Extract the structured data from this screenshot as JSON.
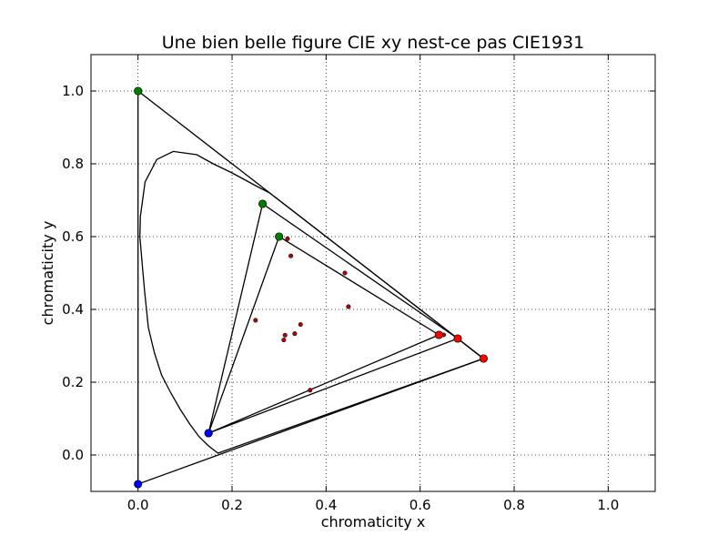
{
  "chart_data": {
    "type": "scatter",
    "title": "Une bien belle figure CIE xy nest-ce pas CIE1931",
    "xlabel": "chromaticity x",
    "ylabel": "chromaticity y",
    "xlim": [
      -0.1,
      1.1
    ],
    "ylim": [
      -0.1,
      1.1
    ],
    "xticks": [
      0.0,
      0.2,
      0.4,
      0.6,
      0.8,
      1.0
    ],
    "xtick_labels": [
      "0.0",
      "0.2",
      "0.4",
      "0.6",
      "0.8",
      "1.0"
    ],
    "yticks": [
      0.0,
      0.2,
      0.4,
      0.6,
      0.8,
      1.0
    ],
    "ytick_labels": [
      "0.0",
      "0.2",
      "0.4",
      "0.6",
      "0.8",
      "1.0"
    ],
    "grid": true,
    "locus": {
      "color": "#000000",
      "points": [
        [
          0.735,
          0.265
        ],
        [
          0.72,
          0.279
        ],
        [
          0.68,
          0.32
        ],
        [
          0.64,
          0.36
        ],
        [
          0.6,
          0.4
        ],
        [
          0.56,
          0.44
        ],
        [
          0.52,
          0.48
        ],
        [
          0.48,
          0.52
        ],
        [
          0.44,
          0.56
        ],
        [
          0.4,
          0.6
        ],
        [
          0.36,
          0.64
        ],
        [
          0.32,
          0.68
        ],
        [
          0.28,
          0.72
        ],
        [
          0.25,
          0.74
        ],
        [
          0.2,
          0.775
        ],
        [
          0.16,
          0.8
        ],
        [
          0.125,
          0.825
        ],
        [
          0.075,
          0.834
        ],
        [
          0.04,
          0.812
        ],
        [
          0.015,
          0.75
        ],
        [
          0.005,
          0.655
        ],
        [
          0.004,
          0.6
        ],
        [
          0.008,
          0.538
        ],
        [
          0.014,
          0.45
        ],
        [
          0.022,
          0.35
        ],
        [
          0.035,
          0.28
        ],
        [
          0.05,
          0.22
        ],
        [
          0.07,
          0.17
        ],
        [
          0.09,
          0.125
        ],
        [
          0.11,
          0.085
        ],
        [
          0.13,
          0.05
        ],
        [
          0.15,
          0.025
        ],
        [
          0.17,
          0.005
        ],
        [
          0.735,
          0.265
        ]
      ]
    },
    "gamuts": [
      {
        "red": [
          0.735,
          0.265
        ],
        "green": [
          0.0,
          1.0
        ],
        "blue": [
          0.0,
          -0.08
        ]
      },
      {
        "red": [
          0.68,
          0.32
        ],
        "green": [
          0.265,
          0.69
        ],
        "blue": [
          0.15,
          0.06
        ]
      },
      {
        "red": [
          0.64,
          0.33
        ],
        "green": [
          0.3,
          0.6
        ],
        "blue": [
          0.15,
          0.06
        ]
      }
    ],
    "primary_colors": {
      "red": "#ff0000",
      "green": "#008000",
      "blue": "#0000ff"
    },
    "white_points": [
      [
        0.3127,
        0.329
      ],
      [
        0.3457,
        0.3585
      ],
      [
        0.44757,
        0.40745
      ],
      [
        0.31,
        0.316
      ],
      [
        0.3333,
        0.3333
      ],
      [
        0.25,
        0.37
      ],
      [
        0.44,
        0.5
      ],
      [
        0.325,
        0.547
      ],
      [
        0.318,
        0.594
      ],
      [
        0.366,
        0.178
      ],
      [
        0.65,
        0.33
      ]
    ],
    "white_point_color": "#c00000"
  }
}
